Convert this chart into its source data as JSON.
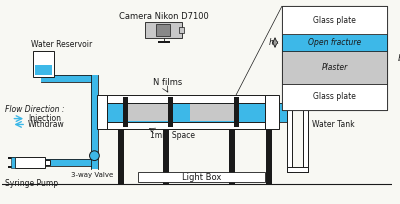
{
  "bg_color": "#f8f8f3",
  "blue": "#3db8e8",
  "light_gray": "#c8c8c8",
  "black": "#1a1a1a",
  "white": "#ffffff",
  "inset_labels": [
    "Glass plate",
    "Open fracture",
    "Plaster",
    "Glass plate"
  ],
  "labels": {
    "camera": "Camera Nikon D7100",
    "n_films": "N films",
    "one_mm": "1mm Space",
    "water_res": "Water Reservoir",
    "flow_dir": "Flow Direction :",
    "injection": "Injection",
    "withdraw": "Withdraw",
    "syringe": "Syringe Pump",
    "valve": "3-way Valve",
    "light_box": "Light Box",
    "water_tank": "Water Tank",
    "h_label": "h",
    "b_label": "b"
  }
}
